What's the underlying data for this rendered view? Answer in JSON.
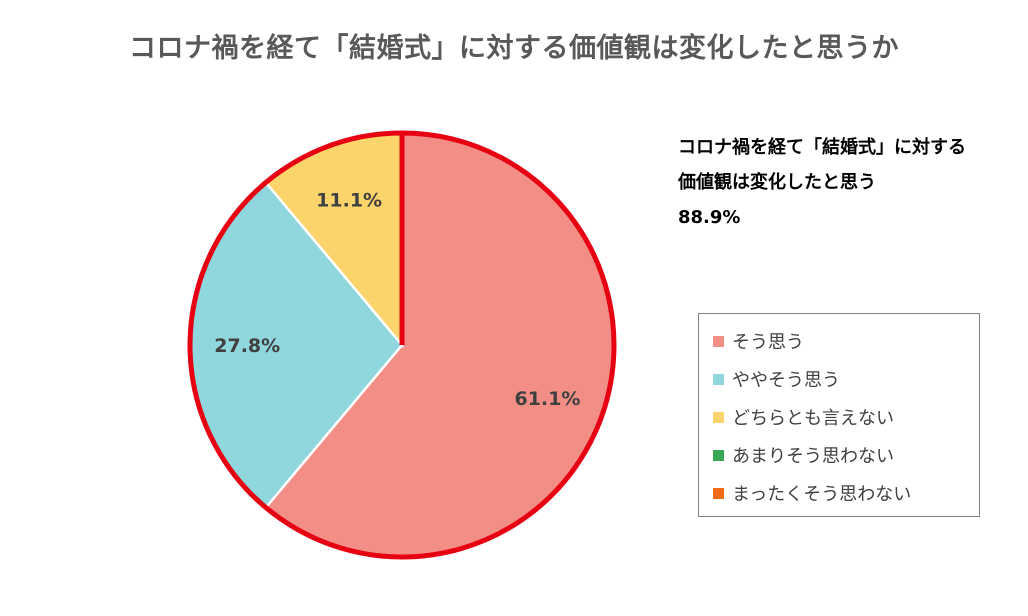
{
  "title": "コロナ禍を経て「結婚式」に対する価値観は変化したと思うか",
  "callout": {
    "line1": "コロナ禍を経て「結婚式」に対する",
    "line2": "価値観は変化したと思う",
    "value": "88.9%"
  },
  "chart_data": {
    "type": "pie",
    "title": "コロナ禍を経て「結婚式」に対する価値観は変化したと思うか",
    "slices": [
      {
        "label": "そう思う",
        "value": 61.1,
        "display": "61.1%",
        "color": "#f28e86"
      },
      {
        "label": "ややそう思う",
        "value": 27.8,
        "display": "27.8%",
        "color": "#8fd6dd"
      },
      {
        "label": "どちらとも言えない",
        "value": 11.1,
        "display": "11.1%",
        "color": "#fcd46c"
      },
      {
        "label": "あまりそう思わない",
        "value": 0,
        "display": "",
        "color": "#38a854"
      },
      {
        "label": "まったくそう思わない",
        "value": 0,
        "display": "",
        "color": "#ef6c1a"
      }
    ],
    "highlight_outline_color": "#e60012",
    "legend_position": "right"
  }
}
